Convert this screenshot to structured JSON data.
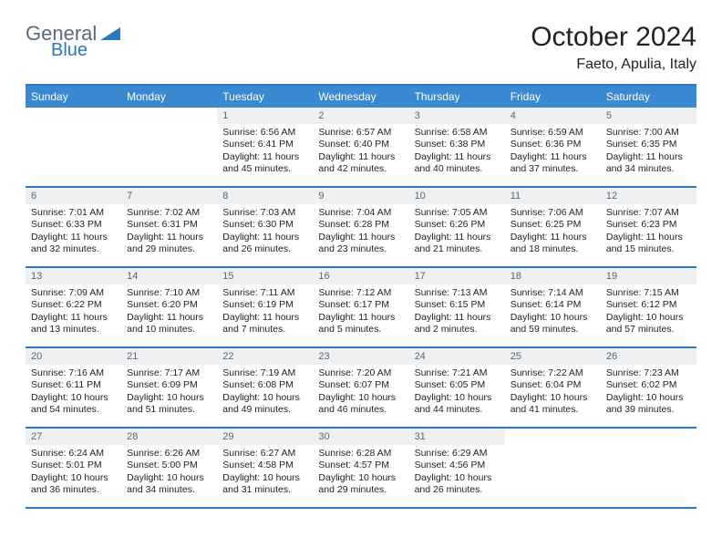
{
  "logo": {
    "part1": "General",
    "part2": "Blue"
  },
  "title": "October 2024",
  "location": "Faeto, Apulia, Italy",
  "colors": {
    "header_bg": "#3a89d0",
    "rule": "#2a78c0",
    "daybar_bg": "#eef0f2",
    "text": "#222222",
    "muted": "#5a6670"
  },
  "dow": [
    "Sunday",
    "Monday",
    "Tuesday",
    "Wednesday",
    "Thursday",
    "Friday",
    "Saturday"
  ],
  "weeks": [
    [
      {
        "blank": true
      },
      {
        "blank": true
      },
      {
        "n": "1",
        "sunrise": "Sunrise: 6:56 AM",
        "sunset": "Sunset: 6:41 PM",
        "day": "Daylight: 11 hours and 45 minutes."
      },
      {
        "n": "2",
        "sunrise": "Sunrise: 6:57 AM",
        "sunset": "Sunset: 6:40 PM",
        "day": "Daylight: 11 hours and 42 minutes."
      },
      {
        "n": "3",
        "sunrise": "Sunrise: 6:58 AM",
        "sunset": "Sunset: 6:38 PM",
        "day": "Daylight: 11 hours and 40 minutes."
      },
      {
        "n": "4",
        "sunrise": "Sunrise: 6:59 AM",
        "sunset": "Sunset: 6:36 PM",
        "day": "Daylight: 11 hours and 37 minutes."
      },
      {
        "n": "5",
        "sunrise": "Sunrise: 7:00 AM",
        "sunset": "Sunset: 6:35 PM",
        "day": "Daylight: 11 hours and 34 minutes."
      }
    ],
    [
      {
        "n": "6",
        "sunrise": "Sunrise: 7:01 AM",
        "sunset": "Sunset: 6:33 PM",
        "day": "Daylight: 11 hours and 32 minutes."
      },
      {
        "n": "7",
        "sunrise": "Sunrise: 7:02 AM",
        "sunset": "Sunset: 6:31 PM",
        "day": "Daylight: 11 hours and 29 minutes."
      },
      {
        "n": "8",
        "sunrise": "Sunrise: 7:03 AM",
        "sunset": "Sunset: 6:30 PM",
        "day": "Daylight: 11 hours and 26 minutes."
      },
      {
        "n": "9",
        "sunrise": "Sunrise: 7:04 AM",
        "sunset": "Sunset: 6:28 PM",
        "day": "Daylight: 11 hours and 23 minutes."
      },
      {
        "n": "10",
        "sunrise": "Sunrise: 7:05 AM",
        "sunset": "Sunset: 6:26 PM",
        "day": "Daylight: 11 hours and 21 minutes."
      },
      {
        "n": "11",
        "sunrise": "Sunrise: 7:06 AM",
        "sunset": "Sunset: 6:25 PM",
        "day": "Daylight: 11 hours and 18 minutes."
      },
      {
        "n": "12",
        "sunrise": "Sunrise: 7:07 AM",
        "sunset": "Sunset: 6:23 PM",
        "day": "Daylight: 11 hours and 15 minutes."
      }
    ],
    [
      {
        "n": "13",
        "sunrise": "Sunrise: 7:09 AM",
        "sunset": "Sunset: 6:22 PM",
        "day": "Daylight: 11 hours and 13 minutes."
      },
      {
        "n": "14",
        "sunrise": "Sunrise: 7:10 AM",
        "sunset": "Sunset: 6:20 PM",
        "day": "Daylight: 11 hours and 10 minutes."
      },
      {
        "n": "15",
        "sunrise": "Sunrise: 7:11 AM",
        "sunset": "Sunset: 6:19 PM",
        "day": "Daylight: 11 hours and 7 minutes."
      },
      {
        "n": "16",
        "sunrise": "Sunrise: 7:12 AM",
        "sunset": "Sunset: 6:17 PM",
        "day": "Daylight: 11 hours and 5 minutes."
      },
      {
        "n": "17",
        "sunrise": "Sunrise: 7:13 AM",
        "sunset": "Sunset: 6:15 PM",
        "day": "Daylight: 11 hours and 2 minutes."
      },
      {
        "n": "18",
        "sunrise": "Sunrise: 7:14 AM",
        "sunset": "Sunset: 6:14 PM",
        "day": "Daylight: 10 hours and 59 minutes."
      },
      {
        "n": "19",
        "sunrise": "Sunrise: 7:15 AM",
        "sunset": "Sunset: 6:12 PM",
        "day": "Daylight: 10 hours and 57 minutes."
      }
    ],
    [
      {
        "n": "20",
        "sunrise": "Sunrise: 7:16 AM",
        "sunset": "Sunset: 6:11 PM",
        "day": "Daylight: 10 hours and 54 minutes."
      },
      {
        "n": "21",
        "sunrise": "Sunrise: 7:17 AM",
        "sunset": "Sunset: 6:09 PM",
        "day": "Daylight: 10 hours and 51 minutes."
      },
      {
        "n": "22",
        "sunrise": "Sunrise: 7:19 AM",
        "sunset": "Sunset: 6:08 PM",
        "day": "Daylight: 10 hours and 49 minutes."
      },
      {
        "n": "23",
        "sunrise": "Sunrise: 7:20 AM",
        "sunset": "Sunset: 6:07 PM",
        "day": "Daylight: 10 hours and 46 minutes."
      },
      {
        "n": "24",
        "sunrise": "Sunrise: 7:21 AM",
        "sunset": "Sunset: 6:05 PM",
        "day": "Daylight: 10 hours and 44 minutes."
      },
      {
        "n": "25",
        "sunrise": "Sunrise: 7:22 AM",
        "sunset": "Sunset: 6:04 PM",
        "day": "Daylight: 10 hours and 41 minutes."
      },
      {
        "n": "26",
        "sunrise": "Sunrise: 7:23 AM",
        "sunset": "Sunset: 6:02 PM",
        "day": "Daylight: 10 hours and 39 minutes."
      }
    ],
    [
      {
        "n": "27",
        "sunrise": "Sunrise: 6:24 AM",
        "sunset": "Sunset: 5:01 PM",
        "day": "Daylight: 10 hours and 36 minutes."
      },
      {
        "n": "28",
        "sunrise": "Sunrise: 6:26 AM",
        "sunset": "Sunset: 5:00 PM",
        "day": "Daylight: 10 hours and 34 minutes."
      },
      {
        "n": "29",
        "sunrise": "Sunrise: 6:27 AM",
        "sunset": "Sunset: 4:58 PM",
        "day": "Daylight: 10 hours and 31 minutes."
      },
      {
        "n": "30",
        "sunrise": "Sunrise: 6:28 AM",
        "sunset": "Sunset: 4:57 PM",
        "day": "Daylight: 10 hours and 29 minutes."
      },
      {
        "n": "31",
        "sunrise": "Sunrise: 6:29 AM",
        "sunset": "Sunset: 4:56 PM",
        "day": "Daylight: 10 hours and 26 minutes."
      },
      {
        "blank": true
      },
      {
        "blank": true
      }
    ]
  ]
}
